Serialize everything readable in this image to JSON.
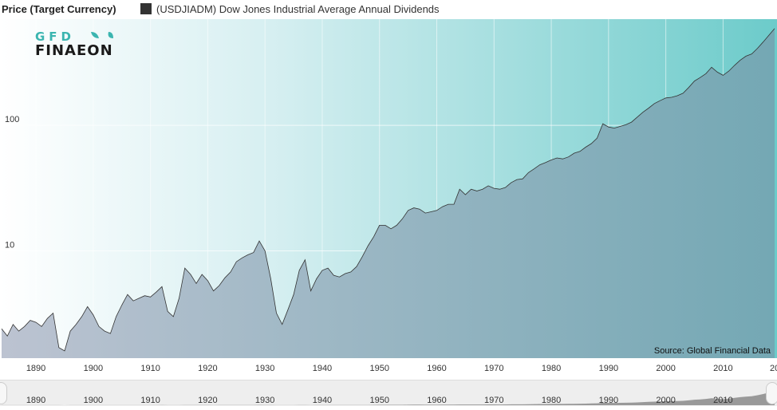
{
  "header": {
    "y_axis_title": "Price (Target Currency)",
    "legend_label": "(USDJIADM) Dow Jones Industrial Average Annual Dividends",
    "legend_color": "#333333"
  },
  "logo": {
    "line1": "GFD",
    "line2": "FINAEON"
  },
  "source": "Source: Global Financial Data",
  "navigator": {
    "ticks": [
      "1890",
      "1900",
      "1910",
      "1920",
      "1930",
      "1940",
      "1950",
      "1960",
      "1970",
      "1980",
      "1990",
      "2000",
      "2010"
    ]
  },
  "chart_data": {
    "type": "area",
    "title": "",
    "xlabel": "",
    "ylabel": "Price (Target Currency)",
    "yscale": "log",
    "xlim": [
      1884,
      2019
    ],
    "ylim": [
      1.4,
      700
    ],
    "x_ticks": [
      "1890",
      "1900",
      "1910",
      "1920",
      "1930",
      "1940",
      "1950",
      "1960",
      "1970",
      "1980",
      "1990",
      "2000",
      "2010",
      "20"
    ],
    "y_ticks": [
      {
        "value": 100,
        "label": "100"
      },
      {
        "value": 10,
        "label": "10"
      }
    ],
    "grid": true,
    "series": [
      {
        "name": "(USDJIADM) Dow Jones Industrial Average Annual Dividends",
        "color": "#333333",
        "points": [
          [
            1884,
            2.4
          ],
          [
            1885,
            2.1
          ],
          [
            1886,
            2.6
          ],
          [
            1887,
            2.3
          ],
          [
            1888,
            2.5
          ],
          [
            1889,
            2.8
          ],
          [
            1890,
            2.7
          ],
          [
            1891,
            2.5
          ],
          [
            1892,
            2.9
          ],
          [
            1893,
            3.2
          ],
          [
            1894,
            1.7
          ],
          [
            1895,
            1.6
          ],
          [
            1896,
            2.3
          ],
          [
            1897,
            2.6
          ],
          [
            1898,
            3.0
          ],
          [
            1899,
            3.6
          ],
          [
            1900,
            3.1
          ],
          [
            1901,
            2.5
          ],
          [
            1902,
            2.3
          ],
          [
            1903,
            2.2
          ],
          [
            1904,
            3.0
          ],
          [
            1905,
            3.7
          ],
          [
            1906,
            4.5
          ],
          [
            1907,
            4.0
          ],
          [
            1908,
            4.2
          ],
          [
            1909,
            4.4
          ],
          [
            1910,
            4.3
          ],
          [
            1911,
            4.7
          ],
          [
            1912,
            5.2
          ],
          [
            1913,
            3.3
          ],
          [
            1914,
            3.0
          ],
          [
            1915,
            4.2
          ],
          [
            1916,
            7.3
          ],
          [
            1917,
            6.5
          ],
          [
            1918,
            5.5
          ],
          [
            1919,
            6.5
          ],
          [
            1920,
            5.8
          ],
          [
            1921,
            4.8
          ],
          [
            1922,
            5.3
          ],
          [
            1923,
            6.1
          ],
          [
            1924,
            6.8
          ],
          [
            1925,
            8.2
          ],
          [
            1926,
            8.8
          ],
          [
            1927,
            9.3
          ],
          [
            1928,
            9.7
          ],
          [
            1929,
            12.0
          ],
          [
            1930,
            10.0
          ],
          [
            1931,
            6.0
          ],
          [
            1932,
            3.2
          ],
          [
            1933,
            2.6
          ],
          [
            1934,
            3.4
          ],
          [
            1935,
            4.5
          ],
          [
            1936,
            7.0
          ],
          [
            1937,
            8.5
          ],
          [
            1938,
            4.8
          ],
          [
            1939,
            6.0
          ],
          [
            1940,
            7.0
          ],
          [
            1941,
            7.3
          ],
          [
            1942,
            6.4
          ],
          [
            1943,
            6.2
          ],
          [
            1944,
            6.6
          ],
          [
            1945,
            6.8
          ],
          [
            1946,
            7.5
          ],
          [
            1947,
            9.0
          ],
          [
            1948,
            11.0
          ],
          [
            1949,
            13.0
          ],
          [
            1950,
            16.0
          ],
          [
            1951,
            16.0
          ],
          [
            1952,
            15.0
          ],
          [
            1953,
            16.0
          ],
          [
            1954,
            18.0
          ],
          [
            1955,
            21.0
          ],
          [
            1956,
            22.0
          ],
          [
            1957,
            21.5
          ],
          [
            1958,
            20.0
          ],
          [
            1959,
            20.5
          ],
          [
            1960,
            21.0
          ],
          [
            1961,
            22.5
          ],
          [
            1962,
            23.5
          ],
          [
            1963,
            23.5
          ],
          [
            1964,
            31.0
          ],
          [
            1965,
            28.0
          ],
          [
            1966,
            31.0
          ],
          [
            1967,
            30.0
          ],
          [
            1968,
            31.0
          ],
          [
            1969,
            33.0
          ],
          [
            1970,
            31.5
          ],
          [
            1971,
            31.0
          ],
          [
            1972,
            32.0
          ],
          [
            1973,
            35.0
          ],
          [
            1974,
            37.0
          ],
          [
            1975,
            37.5
          ],
          [
            1976,
            42.0
          ],
          [
            1977,
            45.0
          ],
          [
            1978,
            48.5
          ],
          [
            1979,
            50.5
          ],
          [
            1980,
            53.0
          ],
          [
            1981,
            55.0
          ],
          [
            1982,
            54.0
          ],
          [
            1983,
            56.0
          ],
          [
            1984,
            60.0
          ],
          [
            1985,
            62.0
          ],
          [
            1986,
            67.0
          ],
          [
            1987,
            71.5
          ],
          [
            1988,
            79.0
          ],
          [
            1989,
            103.0
          ],
          [
            1990,
            97.0
          ],
          [
            1991,
            95.0
          ],
          [
            1992,
            98.0
          ],
          [
            1993,
            101.0
          ],
          [
            1994,
            106.0
          ],
          [
            1995,
            116.0
          ],
          [
            1996,
            127.0
          ],
          [
            1997,
            137.0
          ],
          [
            1998,
            149.0
          ],
          [
            1999,
            157.0
          ],
          [
            2000,
            165.0
          ],
          [
            2001,
            167.0
          ],
          [
            2002,
            172.0
          ],
          [
            2003,
            180.0
          ],
          [
            2004,
            200.0
          ],
          [
            2005,
            225.0
          ],
          [
            2006,
            240.0
          ],
          [
            2007,
            258.0
          ],
          [
            2008,
            290.0
          ],
          [
            2009,
            265.0
          ],
          [
            2010,
            250.0
          ],
          [
            2011,
            270.0
          ],
          [
            2012,
            300.0
          ],
          [
            2013,
            330.0
          ],
          [
            2014,
            355.0
          ],
          [
            2015,
            370.0
          ],
          [
            2016,
            410.0
          ],
          [
            2017,
            460.0
          ],
          [
            2018,
            520.0
          ],
          [
            2019,
            590.0
          ]
        ]
      }
    ]
  }
}
